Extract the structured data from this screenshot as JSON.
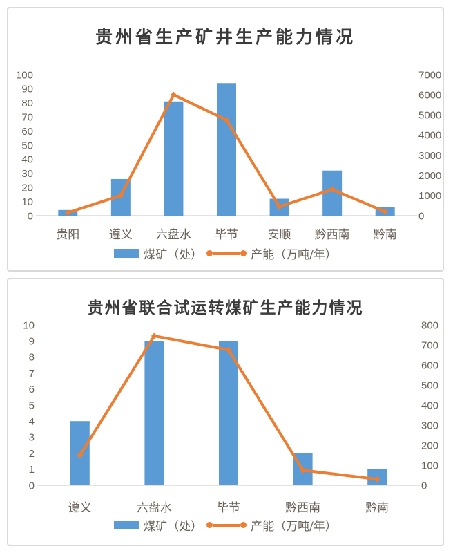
{
  "colors": {
    "bar": "#5B9BD5",
    "line": "#ED7D31",
    "tick_label": "#6a6158",
    "title": "#3b3b3b",
    "panel_border": "#d9d9d9",
    "axis_line": "#d9d9d9",
    "background": "#ffffff"
  },
  "chart_data": [
    {
      "type": "bar",
      "subtype": "combo-bar-line",
      "title": "贵州省生产矿井生产能力情况",
      "categories": [
        "贵阳",
        "遵义",
        "六盘水",
        "毕节",
        "安顺",
        "黔西南",
        "黔南"
      ],
      "series": [
        {
          "name": "煤矿（处）",
          "type": "bar",
          "axis": "left",
          "values": [
            4,
            26,
            81,
            94,
            12,
            32,
            6
          ]
        },
        {
          "name": "产能（万吨/年）",
          "type": "line",
          "axis": "right",
          "values": [
            150,
            1000,
            6000,
            4750,
            450,
            1300,
            200
          ]
        }
      ],
      "left_axis": {
        "min": 0,
        "max": 100,
        "step": 10,
        "ticks": [
          0,
          10,
          20,
          30,
          40,
          50,
          60,
          70,
          80,
          90,
          100
        ]
      },
      "right_axis": {
        "min": 0,
        "max": 7000,
        "step": 1000,
        "ticks": [
          0,
          1000,
          2000,
          3000,
          4000,
          5000,
          6000,
          7000
        ]
      },
      "xlabel": "",
      "ylabel": "",
      "grid": false,
      "legend_position": "bottom"
    },
    {
      "type": "bar",
      "subtype": "combo-bar-line",
      "title": "贵州省联合试运转煤矿生产能力情况",
      "categories": [
        "遵义",
        "六盘水",
        "毕节",
        "黔西南",
        "黔南"
      ],
      "series": [
        {
          "name": "煤矿（处）",
          "type": "bar",
          "axis": "left",
          "values": [
            4,
            9,
            9,
            2,
            1
          ]
        },
        {
          "name": "产能（万吨/年）",
          "type": "line",
          "axis": "right",
          "values": [
            150,
            745,
            675,
            75,
            30
          ]
        }
      ],
      "left_axis": {
        "min": 0,
        "max": 10,
        "step": 1,
        "ticks": [
          0,
          1,
          2,
          3,
          4,
          5,
          6,
          7,
          8,
          9,
          10
        ]
      },
      "right_axis": {
        "min": 0,
        "max": 800,
        "step": 100,
        "ticks": [
          0,
          100,
          200,
          300,
          400,
          500,
          600,
          700,
          800
        ]
      },
      "xlabel": "",
      "ylabel": "",
      "grid": false,
      "legend_position": "bottom"
    }
  ]
}
